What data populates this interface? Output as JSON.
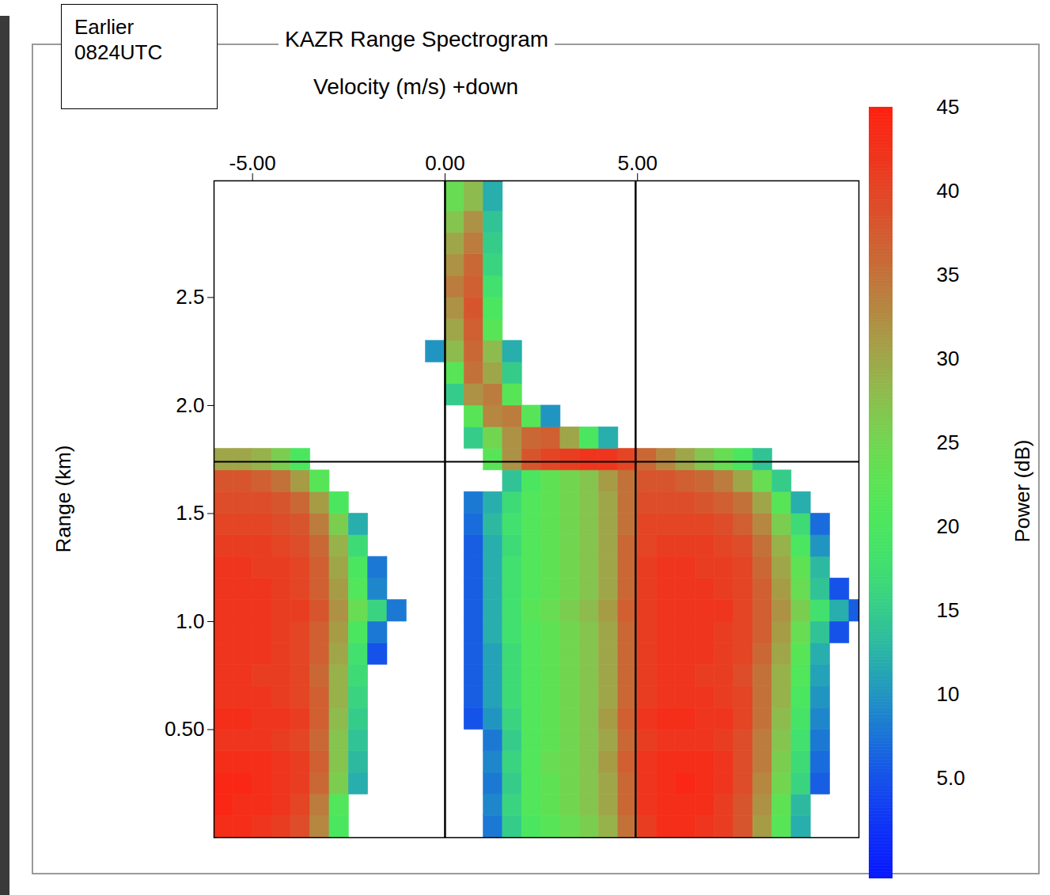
{
  "chart_data": {
    "type": "heatmap",
    "title": "KAZR Range Spectrogram",
    "annotation": [
      "Earlier",
      "0824UTC"
    ],
    "x_label": "Velocity (m/s) +down",
    "y_label": "Range (km)",
    "xlim": [
      -6,
      10.75
    ],
    "xticks": [
      {
        "value": -5,
        "label": "-5.00"
      },
      {
        "value": 0,
        "label": "0.00"
      },
      {
        "value": 5,
        "label": "5.00"
      }
    ],
    "ylim": [
      0,
      3.04
    ],
    "yticks": [
      {
        "value": 0.5,
        "label": "0.50"
      },
      {
        "value": 1,
        "label": "1.0"
      },
      1.5,
      {
        "value": 2,
        "label": "2.0"
      },
      2.5
    ],
    "grid": false,
    "reference_lines": {
      "x": [
        0,
        4.95
      ],
      "y": [
        1.74
      ]
    },
    "velocity_bins": [
      -6,
      -5.5,
      -5,
      -4.5,
      -4,
      -3.5,
      -3,
      -2.5,
      -2,
      -1.5,
      -1,
      -0.5,
      0,
      0.5,
      1,
      1.5,
      2,
      2.5,
      3,
      3.5,
      4,
      4.5,
      5,
      5.5,
      6,
      6.5,
      7,
      7.5,
      8,
      8.5,
      9,
      9.5,
      10,
      10.5,
      10.75
    ],
    "range_bins": [
      0,
      0.1,
      0.2,
      0.3,
      0.4,
      0.5,
      0.6,
      0.7,
      0.8,
      0.9,
      1,
      1.1,
      1.2,
      1.3,
      1.4,
      1.5,
      1.6,
      1.7,
      1.8,
      1.9,
      2,
      2.1,
      2.2,
      2.3,
      2.4,
      2.5,
      2.6,
      2.7,
      2.8,
      2.9,
      3.04
    ],
    "power": [
      [
        43,
        43,
        42,
        41,
        39,
        33,
        20,
        null,
        null,
        null,
        null,
        null,
        null,
        null,
        8,
        15,
        20,
        22,
        24,
        26,
        29,
        35,
        41,
        43,
        43,
        42,
        41,
        38,
        31,
        22,
        12,
        null,
        null,
        null
      ],
      [
        44,
        43,
        43,
        42,
        40,
        34,
        21,
        null,
        null,
        null,
        null,
        null,
        null,
        null,
        9,
        16,
        21,
        23,
        25,
        27,
        30,
        36,
        42,
        43,
        43,
        43,
        41,
        38,
        32,
        23,
        13,
        null,
        null,
        null
      ],
      [
        44,
        44,
        43,
        42,
        41,
        36,
        26,
        12,
        null,
        null,
        null,
        null,
        null,
        null,
        8,
        15,
        21,
        23,
        25,
        27,
        30,
        36,
        42,
        43,
        44,
        43,
        42,
        39,
        33,
        25,
        16,
        6,
        null,
        null
      ],
      [
        43,
        43,
        43,
        42,
        41,
        37,
        27,
        13,
        null,
        null,
        null,
        null,
        null,
        null,
        9,
        16,
        21,
        24,
        25,
        27,
        31,
        37,
        42,
        43,
        43,
        43,
        42,
        39,
        34,
        26,
        17,
        7,
        null,
        null
      ],
      [
        42,
        42,
        42,
        41,
        40,
        36,
        27,
        14,
        null,
        null,
        null,
        null,
        null,
        null,
        8,
        15,
        21,
        23,
        25,
        27,
        30,
        36,
        41,
        42,
        42,
        42,
        41,
        39,
        34,
        27,
        18,
        8,
        null,
        null
      ],
      [
        43,
        43,
        42,
        42,
        41,
        37,
        28,
        15,
        null,
        null,
        null,
        null,
        null,
        5,
        10,
        16,
        21,
        23,
        25,
        27,
        31,
        37,
        42,
        43,
        43,
        42,
        42,
        40,
        35,
        28,
        19,
        9,
        null,
        null
      ],
      [
        42,
        42,
        42,
        41,
        40,
        37,
        29,
        16,
        null,
        null,
        null,
        null,
        null,
        6,
        11,
        17,
        21,
        23,
        25,
        27,
        30,
        36,
        41,
        42,
        42,
        42,
        41,
        40,
        35,
        29,
        20,
        10,
        null,
        null
      ],
      [
        42,
        42,
        41,
        41,
        40,
        36,
        29,
        17,
        null,
        null,
        null,
        null,
        null,
        6,
        11,
        17,
        21,
        23,
        25,
        27,
        30,
        36,
        41,
        42,
        42,
        41,
        41,
        39,
        35,
        29,
        21,
        11,
        null,
        null
      ],
      [
        42,
        42,
        42,
        41,
        40,
        37,
        30,
        18,
        5,
        null,
        null,
        null,
        null,
        6,
        11,
        17,
        21,
        23,
        25,
        27,
        30,
        36,
        41,
        42,
        42,
        42,
        41,
        40,
        36,
        30,
        22,
        12,
        null,
        null
      ],
      [
        42,
        42,
        42,
        41,
        40,
        37,
        31,
        20,
        8,
        null,
        null,
        null,
        null,
        6,
        12,
        18,
        21,
        23,
        25,
        27,
        30,
        36,
        41,
        42,
        42,
        42,
        41,
        40,
        37,
        31,
        24,
        14,
        5,
        null
      ],
      [
        42,
        42,
        42,
        41,
        41,
        38,
        32,
        24,
        16,
        8,
        null,
        null,
        null,
        6,
        12,
        18,
        22,
        24,
        26,
        28,
        31,
        37,
        41,
        42,
        42,
        42,
        42,
        40,
        37,
        32,
        26,
        18,
        12,
        6
      ],
      [
        42,
        42,
        42,
        41,
        40,
        37,
        31,
        21,
        9,
        null,
        null,
        null,
        null,
        6,
        12,
        18,
        21,
        23,
        25,
        27,
        30,
        36,
        41,
        42,
        42,
        42,
        41,
        40,
        37,
        31,
        24,
        14,
        5,
        null
      ],
      [
        42,
        42,
        41,
        41,
        40,
        37,
        30,
        20,
        8,
        null,
        null,
        null,
        null,
        6,
        12,
        18,
        21,
        23,
        25,
        27,
        30,
        36,
        41,
        42,
        42,
        41,
        41,
        40,
        36,
        30,
        23,
        13,
        null,
        null
      ],
      [
        41,
        41,
        41,
        40,
        39,
        36,
        29,
        17,
        null,
        null,
        null,
        null,
        null,
        6,
        12,
        17,
        21,
        23,
        25,
        27,
        30,
        36,
        40,
        41,
        41,
        41,
        40,
        39,
        35,
        29,
        20,
        10,
        null,
        null
      ],
      [
        40,
        40,
        40,
        39,
        38,
        34,
        26,
        12,
        null,
        null,
        null,
        null,
        null,
        7,
        13,
        18,
        21,
        23,
        25,
        27,
        30,
        35,
        40,
        40,
        40,
        40,
        39,
        37,
        33,
        26,
        17,
        7,
        null,
        null
      ],
      [
        39,
        39,
        39,
        38,
        36,
        31,
        20,
        null,
        null,
        null,
        null,
        null,
        null,
        8,
        12,
        17,
        21,
        23,
        25,
        27,
        30,
        35,
        39,
        39,
        39,
        38,
        37,
        35,
        30,
        22,
        12,
        null,
        null,
        null
      ],
      [
        38,
        38,
        37,
        35,
        31,
        22,
        null,
        null,
        null,
        null,
        null,
        null,
        null,
        null,
        null,
        14,
        20,
        23,
        25,
        27,
        31,
        35,
        38,
        38,
        37,
        36,
        34,
        30,
        24,
        15,
        null,
        null,
        null,
        null
      ],
      [
        30,
        30,
        29,
        26,
        20,
        null,
        null,
        null,
        null,
        null,
        null,
        null,
        null,
        null,
        22,
        32,
        38,
        40,
        41,
        42,
        42,
        40,
        36,
        33,
        30,
        27,
        24,
        20,
        14,
        null,
        null,
        null,
        null,
        null
      ],
      [
        null,
        null,
        null,
        null,
        null,
        null,
        null,
        null,
        null,
        null,
        null,
        null,
        null,
        15,
        25,
        32,
        36,
        37,
        30,
        20,
        12,
        null,
        null,
        null,
        null,
        null,
        null,
        null,
        null,
        null,
        null,
        null,
        null,
        null
      ],
      [
        null,
        null,
        null,
        null,
        null,
        null,
        null,
        null,
        null,
        null,
        null,
        null,
        null,
        22,
        33,
        34,
        22,
        10,
        null,
        null,
        null,
        null,
        null,
        null,
        null,
        null,
        null,
        null,
        null,
        null,
        null,
        null,
        null,
        null
      ],
      [
        null,
        null,
        null,
        null,
        null,
        null,
        null,
        null,
        null,
        null,
        null,
        null,
        15,
        32,
        34,
        22,
        null,
        null,
        null,
        null,
        null,
        null,
        null,
        null,
        null,
        null,
        null,
        null,
        null,
        null,
        null,
        null,
        null,
        null
      ],
      [
        null,
        null,
        null,
        null,
        null,
        null,
        null,
        null,
        null,
        null,
        null,
        null,
        22,
        35,
        30,
        15,
        null,
        null,
        null,
        null,
        null,
        null,
        null,
        null,
        null,
        null,
        null,
        null,
        null,
        null,
        null,
        null,
        null,
        null
      ],
      [
        null,
        null,
        null,
        null,
        null,
        null,
        null,
        null,
        null,
        null,
        null,
        10,
        28,
        36,
        28,
        12,
        null,
        null,
        null,
        null,
        null,
        null,
        null,
        null,
        null,
        null,
        null,
        null,
        null,
        null,
        null,
        null,
        null,
        null
      ],
      [
        null,
        null,
        null,
        null,
        null,
        null,
        null,
        null,
        null,
        null,
        null,
        null,
        30,
        37,
        22,
        null,
        null,
        null,
        null,
        null,
        null,
        null,
        null,
        null,
        null,
        null,
        null,
        null,
        null,
        null,
        null,
        null,
        null,
        null
      ],
      [
        null,
        null,
        null,
        null,
        null,
        null,
        null,
        null,
        null,
        null,
        null,
        null,
        32,
        38,
        20,
        null,
        null,
        null,
        null,
        null,
        null,
        null,
        null,
        null,
        null,
        null,
        null,
        null,
        null,
        null,
        null,
        null,
        null,
        null
      ],
      [
        null,
        null,
        null,
        null,
        null,
        null,
        null,
        null,
        null,
        null,
        null,
        null,
        34,
        37,
        18,
        null,
        null,
        null,
        null,
        null,
        null,
        null,
        null,
        null,
        null,
        null,
        null,
        null,
        null,
        null,
        null,
        null,
        null,
        null
      ],
      [
        null,
        null,
        null,
        null,
        null,
        null,
        null,
        null,
        null,
        null,
        null,
        null,
        32,
        36,
        16,
        null,
        null,
        null,
        null,
        null,
        null,
        null,
        null,
        null,
        null,
        null,
        null,
        null,
        null,
        null,
        null,
        null,
        null,
        null
      ],
      [
        null,
        null,
        null,
        null,
        null,
        null,
        null,
        null,
        null,
        null,
        null,
        null,
        30,
        34,
        15,
        null,
        null,
        null,
        null,
        null,
        null,
        null,
        null,
        null,
        null,
        null,
        null,
        null,
        null,
        null,
        null,
        null,
        null,
        null
      ],
      [
        null,
        null,
        null,
        null,
        null,
        null,
        null,
        null,
        null,
        null,
        null,
        null,
        27,
        32,
        14,
        null,
        null,
        null,
        null,
        null,
        null,
        null,
        null,
        null,
        null,
        null,
        null,
        null,
        null,
        null,
        null,
        null,
        null,
        null
      ],
      [
        null,
        null,
        null,
        null,
        null,
        null,
        null,
        null,
        null,
        null,
        null,
        null,
        24,
        28,
        12,
        null,
        null,
        null,
        null,
        null,
        null,
        null,
        null,
        null,
        null,
        null,
        null,
        null,
        null,
        null,
        null,
        null,
        null,
        null
      ]
    ],
    "colorbar": {
      "label": "Power (dB)",
      "range": [
        -1,
        45
      ],
      "ticks": [
        {
          "value": 5,
          "label": "5.0"
        },
        10,
        15,
        20,
        25,
        30,
        35,
        40,
        45
      ]
    }
  }
}
